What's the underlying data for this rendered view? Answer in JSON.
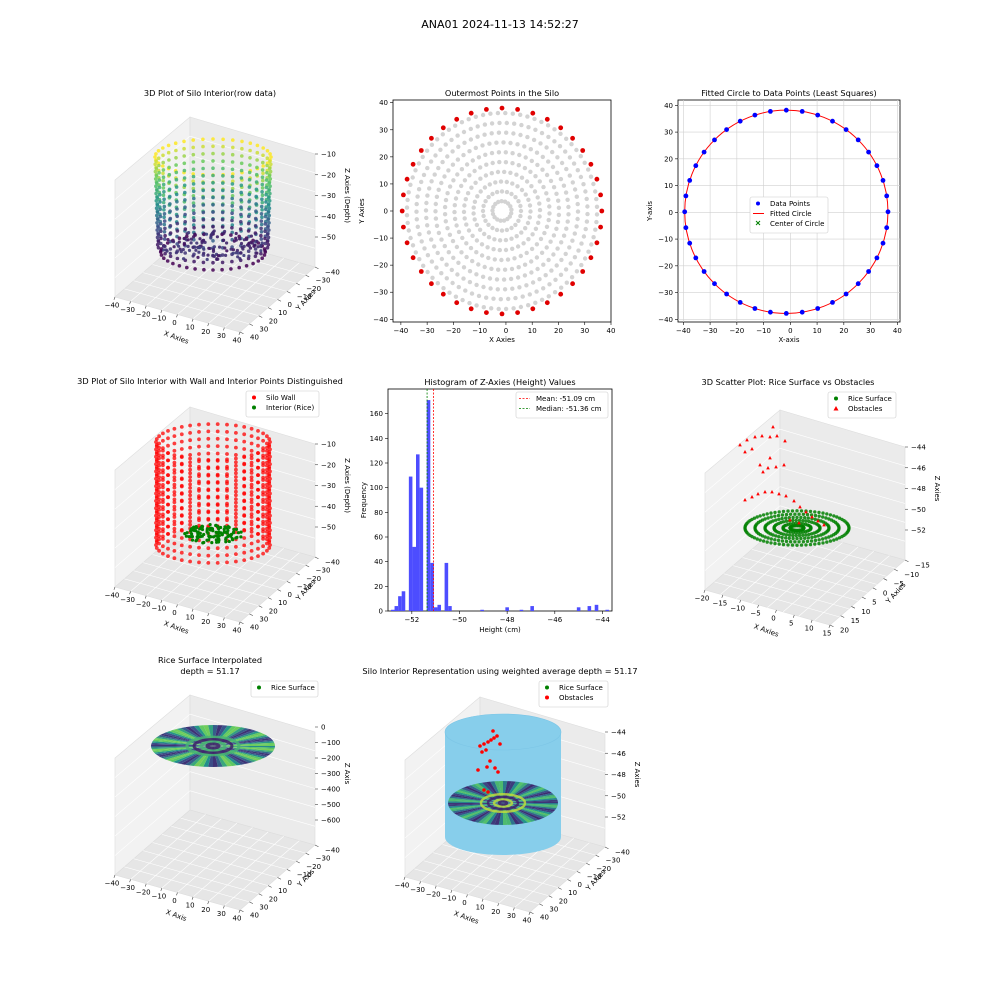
{
  "figure": {
    "suptitle": "ANA01 2024-11-13 14:52:27"
  },
  "chart_data": [
    {
      "type": "scatter",
      "title": "3D Plot of Silo Interior(row data)",
      "xlabel": "X Axies",
      "ylabel": "Y Axies",
      "zlabel": "Z Axies (Depth)",
      "xticks": [
        "−40",
        "−30",
        "−20",
        "−10",
        "0",
        "10",
        "20",
        "30",
        "40"
      ],
      "yticks": [
        "40",
        "30",
        "20",
        "10",
        "0",
        "−10",
        "−20",
        "−30",
        "−40"
      ],
      "zticks": [
        "−10",
        "−20",
        "−30",
        "−40",
        "−50"
      ],
      "zlim": [
        -55,
        -8
      ],
      "colormap": [
        "#440154",
        "#31688e",
        "#21918c",
        "#35b779",
        "#fde725"
      ]
    },
    {
      "type": "scatter",
      "title": "Outermost Points in the Silo",
      "xlabel": "X Axies",
      "ylabel": "Y Axies",
      "xticks": [
        "−40",
        "−30",
        "−20",
        "−10",
        "0",
        "10",
        "20",
        "30",
        "40"
      ],
      "yticks": [
        "40",
        "30",
        "20",
        "10",
        "0",
        "−10",
        "−20",
        "−30",
        "−40"
      ],
      "xlim": [
        -43,
        40
      ],
      "ylim": [
        -41,
        41
      ],
      "center": [
        -1.5,
        0
      ],
      "radius": 38,
      "outer_color": "#e00000",
      "inner_color": "#d3d3d3"
    },
    {
      "type": "scatter",
      "title": "Fitted Circle to Data Points (Least Squares)",
      "xlabel": "X-axis",
      "ylabel": "Y-axis",
      "xticks": [
        "−40",
        "−30",
        "−20",
        "−10",
        "0",
        "10",
        "20",
        "30",
        "40"
      ],
      "yticks": [
        "40",
        "30",
        "20",
        "10",
        "0",
        "−10",
        "−20",
        "−30",
        "−40"
      ],
      "xlim": [
        -42,
        41
      ],
      "ylim": [
        -41,
        42
      ],
      "center": [
        -1.5,
        0.2
      ],
      "radius": 38,
      "legend": [
        "Data Points",
        "Fitted Circle",
        "Center of Circle"
      ],
      "colors": {
        "points": "#0000ff",
        "circle": "#ff0000",
        "center": "#008000"
      }
    },
    {
      "type": "scatter",
      "title": "3D Plot of Silo Interior with Wall and Interior Points Distinguished",
      "xlabel": "X Axies",
      "ylabel": "Y Axies",
      "zlabel": "Z Axies (Depth)",
      "xticks": [
        "−40",
        "−30",
        "−20",
        "−10",
        "0",
        "10",
        "20",
        "30",
        "40"
      ],
      "yticks": [
        "40",
        "30",
        "20",
        "10",
        "0",
        "−10",
        "−20",
        "−30",
        "−40"
      ],
      "zticks": [
        "−10",
        "−20",
        "−30",
        "−40",
        "−50"
      ],
      "legend": [
        "Silo Wall",
        "Interior (Rice)"
      ],
      "colors": {
        "wall": "#ff0000",
        "interior": "#008000"
      }
    },
    {
      "type": "bar",
      "title": "Histogram of Z-Axies (Height) Values",
      "xlabel": "Height (cm)",
      "ylabel": "Frequency",
      "xlim": [
        -53.0,
        -43.6
      ],
      "ylim": [
        0,
        180
      ],
      "xticks": [
        -52,
        -50,
        -48,
        -46,
        -44
      ],
      "xtick_labels": [
        "−52",
        "−50",
        "−48",
        "−46",
        "−44"
      ],
      "yticks": [
        0,
        20,
        40,
        60,
        80,
        100,
        120,
        140,
        160
      ],
      "bin_width": 0.15,
      "bins": [
        {
          "x": -52.8,
          "v": 1
        },
        {
          "x": -52.65,
          "v": 4
        },
        {
          "x": -52.5,
          "v": 12
        },
        {
          "x": -52.35,
          "v": 16
        },
        {
          "x": -52.05,
          "v": 109
        },
        {
          "x": -51.9,
          "v": 52
        },
        {
          "x": -51.75,
          "v": 127
        },
        {
          "x": -51.6,
          "v": 100
        },
        {
          "x": -51.3,
          "v": 171
        },
        {
          "x": -51.15,
          "v": 39
        },
        {
          "x": -51.0,
          "v": 3
        },
        {
          "x": -50.85,
          "v": 5
        },
        {
          "x": -50.55,
          "v": 39
        },
        {
          "x": -50.4,
          "v": 4
        },
        {
          "x": -49.05,
          "v": 1
        },
        {
          "x": -48.0,
          "v": 3
        },
        {
          "x": -47.4,
          "v": 1
        },
        {
          "x": -46.95,
          "v": 4
        },
        {
          "x": -45.0,
          "v": 3
        },
        {
          "x": -44.55,
          "v": 4
        },
        {
          "x": -44.25,
          "v": 5
        },
        {
          "x": -43.8,
          "v": 1
        }
      ],
      "mean": -51.09,
      "median": -51.36,
      "legend": [
        "Mean: -51.09 cm",
        "Median: -51.36 cm"
      ],
      "colors": {
        "bar": "#4d4dff",
        "mean": "#ff0000",
        "median": "#008000"
      }
    },
    {
      "type": "scatter",
      "title": "3D Scatter Plot: Rice Surface vs Obstacles",
      "xlabel": "X Axies",
      "ylabel": "Y Axies",
      "zlabel": "Z Axies",
      "xticks": [
        "−20",
        "−15",
        "−10",
        "−5",
        "0",
        "5",
        "10",
        "15"
      ],
      "yticks": [
        "20",
        "15",
        "10",
        "5",
        "0",
        "−5",
        "−10",
        "−15"
      ],
      "zticks": [
        "−44",
        "−46",
        "−48",
        "−50",
        "−52"
      ],
      "legend": [
        "Rice Surface",
        "Obstacles"
      ],
      "colors": {
        "rice": "#008000",
        "obstacles": "#ff0000"
      }
    },
    {
      "type": "scatter",
      "title": "Rice Surface Interpolated",
      "subtitle": "depth = 51.17",
      "xlabel": "X Axis",
      "ylabel": "Y Axis",
      "zlabel": "Z Axis",
      "xticks": [
        "−40",
        "−30",
        "−20",
        "−10",
        "0",
        "10",
        "20",
        "30",
        "40"
      ],
      "yticks": [
        "40",
        "30",
        "20",
        "10",
        "0",
        "−10",
        "−20",
        "−30",
        "−40"
      ],
      "zticks": [
        "0",
        "−100",
        "−200",
        "−300",
        "−400",
        "−500",
        "−600"
      ],
      "legend": [
        "Rice Surface"
      ],
      "colors": {
        "rice": "#008000"
      }
    },
    {
      "type": "scatter",
      "title": "Silo Interior Representation using weighted average depth = 51.17",
      "xlabel": "X Axies",
      "ylabel": "Y Axies",
      "zlabel": "Z Axies",
      "xticks": [
        "−40",
        "−30",
        "−20",
        "−10",
        "0",
        "10",
        "20",
        "30",
        "40"
      ],
      "yticks": [
        "40",
        "30",
        "20",
        "10",
        "0",
        "−10",
        "−20",
        "−30",
        "−40"
      ],
      "zticks": [
        "−44",
        "−46",
        "−48",
        "−50",
        "−52"
      ],
      "legend": [
        "Rice Surface",
        "Obstacles"
      ],
      "colors": {
        "cylinder": "#87ceeb",
        "rice": "#008000",
        "obstacles": "#ff0000"
      }
    }
  ]
}
